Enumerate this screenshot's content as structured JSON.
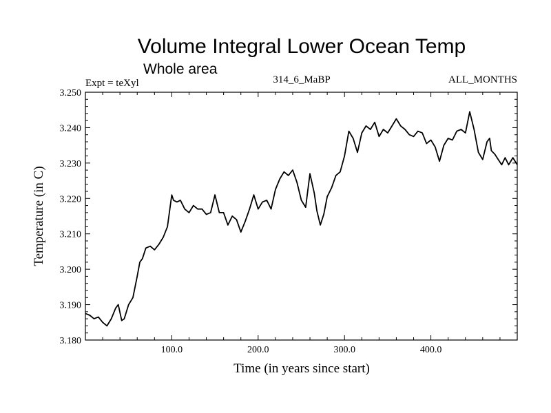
{
  "chart_data": {
    "type": "line",
    "title": "Volume Integral Lower Ocean Temp",
    "subtitle": "Whole area",
    "left_label": "Expt = teXyl",
    "center_label": "314_6_MaBP",
    "right_label": "ALL_MONTHS",
    "xlabel": "Time (in years since start)",
    "ylabel": "Temperature (in C)",
    "xlim": [
      0,
      500
    ],
    "ylim": [
      3.18,
      3.25
    ],
    "x_ticks": [
      100,
      200,
      300,
      400
    ],
    "x_tick_labels": [
      "100.0",
      "200.0",
      "300.0",
      "400.0"
    ],
    "y_ticks": [
      3.18,
      3.19,
      3.2,
      3.21,
      3.22,
      3.23,
      3.24,
      3.25
    ],
    "y_tick_labels": [
      "3.180",
      "3.190",
      "3.200",
      "3.210",
      "3.220",
      "3.230",
      "3.240",
      "3.250"
    ],
    "grid": false,
    "series": [
      {
        "color": "#000000",
        "x": [
          0,
          5,
          10,
          15,
          20,
          25,
          30,
          35,
          38,
          42,
          45,
          50,
          55,
          60,
          63,
          66,
          70,
          75,
          80,
          85,
          90,
          95,
          100,
          102,
          106,
          110,
          115,
          120,
          125,
          130,
          135,
          140,
          145,
          150,
          155,
          160,
          165,
          170,
          175,
          180,
          185,
          190,
          195,
          200,
          205,
          210,
          215,
          220,
          225,
          230,
          235,
          240,
          245,
          250,
          255,
          260,
          265,
          268,
          272,
          276,
          280,
          285,
          290,
          295,
          300,
          305,
          310,
          315,
          320,
          325,
          330,
          335,
          340,
          345,
          350,
          355,
          360,
          365,
          370,
          375,
          380,
          385,
          390,
          395,
          400,
          405,
          410,
          415,
          420,
          425,
          430,
          435,
          440,
          445,
          450,
          455,
          460,
          465,
          468,
          470,
          474,
          478,
          482,
          486,
          490,
          495,
          500
        ],
        "y": [
          3.1875,
          3.187,
          3.186,
          3.1865,
          3.185,
          3.184,
          3.186,
          3.189,
          3.19,
          3.1855,
          3.186,
          3.19,
          3.192,
          3.198,
          3.202,
          3.203,
          3.206,
          3.2065,
          3.2055,
          3.207,
          3.209,
          3.212,
          3.221,
          3.2195,
          3.219,
          3.2195,
          3.217,
          3.216,
          3.218,
          3.217,
          3.217,
          3.2155,
          3.216,
          3.221,
          3.216,
          3.216,
          3.2125,
          3.215,
          3.214,
          3.2105,
          3.2135,
          3.217,
          3.221,
          3.217,
          3.219,
          3.2195,
          3.217,
          3.2225,
          3.2255,
          3.2275,
          3.2265,
          3.228,
          3.2245,
          3.2195,
          3.2175,
          3.227,
          3.2215,
          3.2165,
          3.2125,
          3.2155,
          3.2205,
          3.223,
          3.2265,
          3.2275,
          3.232,
          3.239,
          3.237,
          3.233,
          3.2385,
          3.2405,
          3.2395,
          3.2415,
          3.2375,
          3.2395,
          3.2385,
          3.2405,
          3.2425,
          3.2405,
          3.2395,
          3.238,
          3.2375,
          3.239,
          3.2385,
          3.2355,
          3.2365,
          3.2345,
          3.2305,
          3.235,
          3.237,
          3.2365,
          3.239,
          3.2395,
          3.2385,
          3.2445,
          3.2395,
          3.233,
          3.231,
          3.236,
          3.237,
          3.2335,
          3.2325,
          3.231,
          3.2295,
          3.2315,
          3.2295,
          3.2315,
          3.2295
        ]
      }
    ]
  }
}
